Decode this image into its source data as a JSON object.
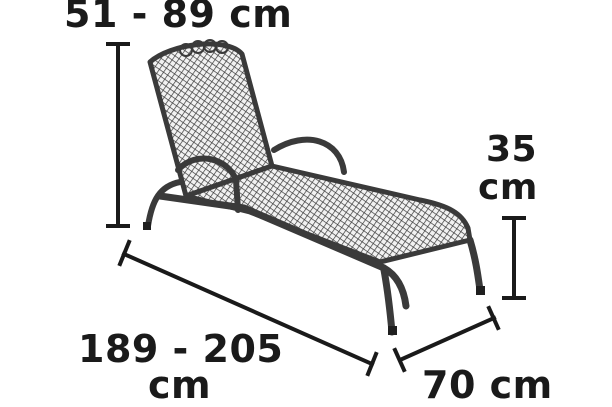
{
  "dimensions": {
    "backrest_height": "51 - 89 cm",
    "seat_height_value": "35",
    "seat_height_unit": "cm",
    "length_value": "189 - 205",
    "length_unit": "cm",
    "width": "70 cm"
  },
  "colors": {
    "frame": "#3a3a3a",
    "mesh": "#2b2b2b",
    "dimension_line": "#1a1a1a"
  },
  "product_image": "metal-mesh-sun-lounger"
}
